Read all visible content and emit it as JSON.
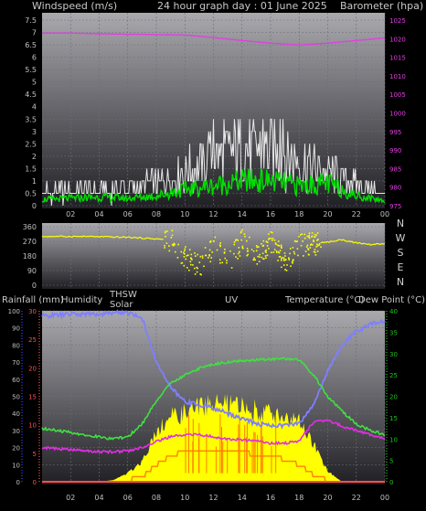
{
  "header": {
    "windspeed_label": "Windspeed (m/s)",
    "title": "24 hour graph day : 01 June 2025",
    "barometer_label": "Barometer (hpa)"
  },
  "bottom_header": {
    "rainfall": "Rainfall (mm)",
    "humidity": "Humidity",
    "thsw": "THSW",
    "solar": "Solar",
    "uv": "UV",
    "temperature": "Temperature (°C)",
    "dewpoint": "Dew Point (°C)"
  },
  "colors": {
    "background": "#000000",
    "panel_top": "#a9a9ae",
    "panel_bottom": "#1f1f24",
    "axis_text": "#c0c0c0",
    "barometer": "#e040e0",
    "wind_avg": "#00e000",
    "wind_gust": "#e8e8e8",
    "direction": "#ffff00",
    "humidity": "#7f7fff",
    "temperature": "#40e040",
    "dewpoint": "#e030e0",
    "rain": "#ff5050",
    "solar": "#ffff00",
    "uv": "#ff8000",
    "axis_blue": "#4040ff",
    "axis_green": "#20c020"
  },
  "chart_data": [
    {
      "type": "line",
      "name": "wind-barometer",
      "x_ticks": [
        "02",
        "04",
        "06",
        "08",
        "10",
        "12",
        "14",
        "16",
        "18",
        "20",
        "22",
        "00"
      ],
      "ylim_left": [
        0,
        7.5
      ],
      "yticks_left": [
        "0",
        "0.5",
        "1",
        "1.5",
        "2",
        "2.5",
        "3",
        "3.5",
        "4",
        "4.5",
        "5",
        "5.5",
        "6",
        "6.5",
        "7",
        "7.5"
      ],
      "ylim_right": [
        975,
        1025
      ],
      "yticks_right": [
        "975",
        "980",
        "985",
        "990",
        "995",
        "1000",
        "1005",
        "1010",
        "1015",
        "1020",
        "1025"
      ],
      "x_hours": [
        0,
        2,
        4,
        6,
        8,
        10,
        12,
        14,
        16,
        18,
        20,
        22,
        24
      ],
      "barometer": [
        1021.5,
        1021.5,
        1021.3,
        1021.2,
        1021.1,
        1021.0,
        1020.3,
        1019.5,
        1018.8,
        1018.3,
        1018.8,
        1019.5,
        1020.2
      ],
      "wind_avg": [
        0.25,
        0.3,
        0.35,
        0.3,
        0.4,
        0.65,
        0.8,
        1.0,
        1.0,
        0.8,
        0.9,
        0.4,
        0.2
      ],
      "wind_gust": [
        0.5,
        0.5,
        0.6,
        0.6,
        0.8,
        1.2,
        1.7,
        2.1,
        2.0,
        1.6,
        1.2,
        0.8,
        0.4
      ],
      "wind_gust_max": 3.6
    },
    {
      "type": "scatter",
      "name": "wind-direction",
      "ylim": [
        0,
        360
      ],
      "yticks": [
        "0",
        "90",
        "180",
        "270",
        "360"
      ],
      "compass": [
        "N",
        "W",
        "S",
        "E",
        "N"
      ],
      "x_hours": [
        0,
        3,
        6,
        8,
        9,
        10,
        11,
        12,
        13,
        14,
        15,
        16,
        17,
        18,
        19,
        20,
        21,
        22,
        23,
        24
      ],
      "direction": [
        300,
        300,
        295,
        285,
        280,
        180,
        120,
        240,
        150,
        280,
        190,
        270,
        150,
        250,
        260,
        265,
        280,
        260,
        250,
        255
      ]
    },
    {
      "type": "line",
      "name": "temp-humidity-solar",
      "x_ticks": [
        "02",
        "04",
        "06",
        "08",
        "10",
        "12",
        "14",
        "16",
        "18",
        "20",
        "22",
        "00"
      ],
      "humidity_ticks": [
        "0",
        "10",
        "20",
        "30",
        "40",
        "50",
        "60",
        "70",
        "80",
        "90",
        "100"
      ],
      "rain_ticks": [
        "0",
        "5",
        "10",
        "15",
        "20",
        "25",
        "30"
      ],
      "temp_ticks": [
        "0",
        "5",
        "10",
        "15",
        "20",
        "25",
        "30",
        "35",
        "40"
      ],
      "humidity_range": [
        0,
        100
      ],
      "temperature_range": [
        0,
        40
      ],
      "x_hours": [
        0,
        2,
        4,
        5,
        6,
        7,
        8,
        9,
        10,
        11,
        12,
        13,
        14,
        15,
        16,
        17,
        18,
        19,
        20,
        21,
        22,
        23,
        24
      ],
      "humidity": [
        97,
        98,
        98,
        99,
        99,
        96,
        70,
        55,
        47,
        45,
        43,
        40,
        37,
        34,
        33,
        33,
        34,
        45,
        65,
        80,
        88,
        92,
        94
      ],
      "temperature": [
        12.5,
        11.5,
        10.5,
        10.0,
        10.5,
        13.5,
        19.0,
        23.0,
        25.0,
        26.5,
        27.5,
        28.0,
        28.3,
        28.5,
        28.7,
        28.8,
        28.5,
        25.0,
        20.0,
        16.5,
        13.5,
        12.0,
        11.0
      ],
      "dewpoint": [
        8.0,
        7.5,
        7.0,
        7.0,
        7.2,
        8.0,
        9.5,
        10.5,
        11.0,
        11.0,
        10.5,
        10.0,
        9.8,
        9.5,
        9.0,
        9.0,
        9.5,
        14.0,
        14.5,
        13.0,
        12.0,
        11.0,
        10.0
      ],
      "solar_pct": [
        0,
        0,
        0,
        1,
        5,
        12,
        30,
        38,
        40,
        44,
        46,
        45,
        44,
        42,
        40,
        38,
        35,
        22,
        6,
        0,
        0,
        0,
        0
      ],
      "uv_pct": [
        0,
        0,
        0,
        0,
        1,
        3,
        10,
        15,
        18,
        18,
        19,
        18,
        17,
        16,
        15,
        13,
        10,
        4,
        1,
        0,
        0,
        0,
        0
      ],
      "rain": [
        0,
        0,
        0,
        0,
        0,
        0,
        0,
        0,
        0,
        0,
        0,
        0,
        0,
        0,
        0,
        0,
        0,
        0,
        0,
        0,
        0,
        0,
        0
      ]
    }
  ]
}
